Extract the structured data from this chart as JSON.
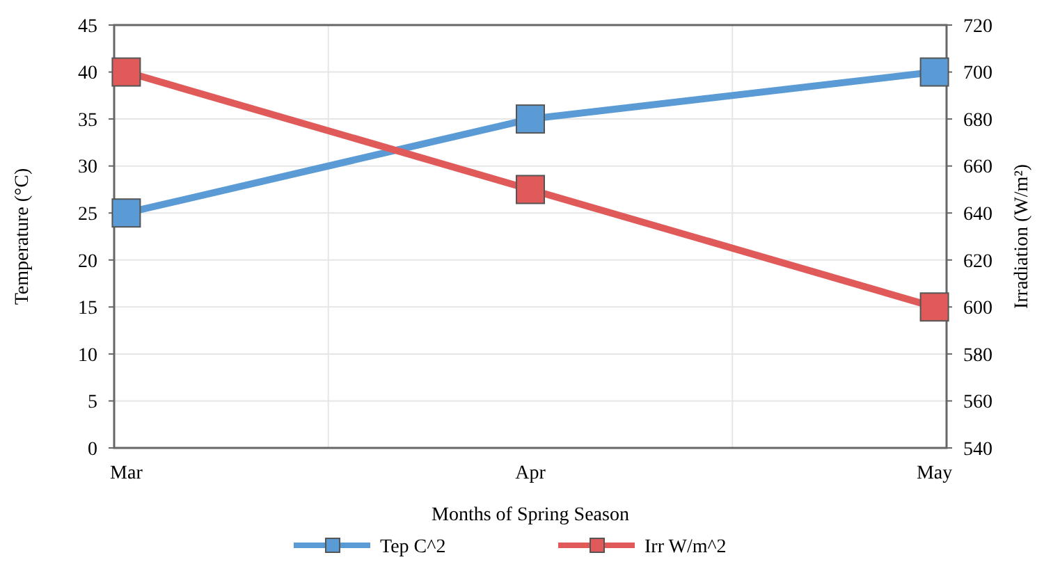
{
  "chart_data": {
    "type": "line",
    "xlabel": "Months of Spring Season",
    "ylabel": "Temperature (°C)",
    "y2label": "Irradiation (W/m²)",
    "categories": [
      "Mar",
      "Apr",
      "May"
    ],
    "series": [
      {
        "name": "Tep C^2",
        "color": "#5b9bd5",
        "values": [
          25,
          35,
          40
        ]
      },
      {
        "name": "Irr W/m^2",
        "color": "#e05a5a",
        "values": [
          700,
          650,
          600
        ],
        "axis": "y2"
      }
    ],
    "ylim": [
      0,
      45
    ],
    "yticks": [
      0,
      5,
      10,
      15,
      20,
      25,
      30,
      35,
      40,
      45
    ],
    "y2lim": [
      540,
      720
    ],
    "y2ticks": [
      540,
      560,
      580,
      600,
      620,
      640,
      660,
      680,
      700,
      720
    ],
    "grid": true,
    "legend": "bottom",
    "marker": "square",
    "line_style": "solid"
  }
}
